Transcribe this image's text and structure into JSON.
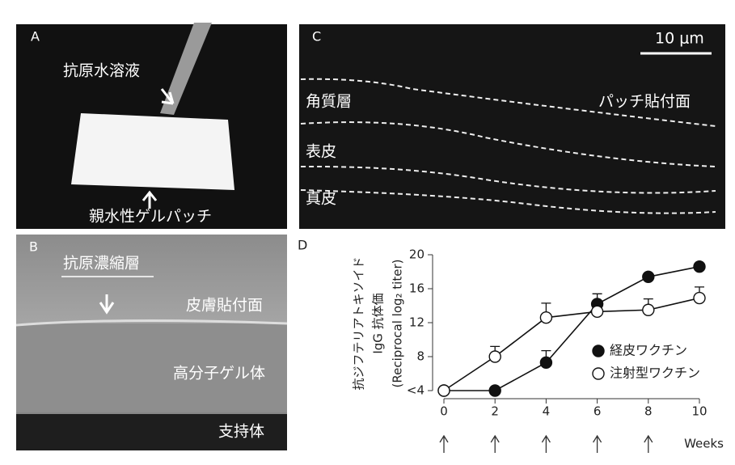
{
  "panels": {
    "a": {
      "label": "A",
      "antigen_solution": "抗原水溶液",
      "gel_patch": "親水性ゲルパッチ"
    },
    "b": {
      "label": "B",
      "antigen_layer": "抗原濃縮層",
      "skin_side": "皮膚貼付面",
      "polymer_gel": "高分子ゲル体",
      "support": "支持体"
    },
    "c": {
      "label": "C",
      "scale_bar": "10 μm",
      "stratum_corneum": "角質層",
      "patch_side": "パッチ貼付面",
      "epidermis": "表皮",
      "dermis": "真皮"
    },
    "d": {
      "label": "D"
    }
  },
  "chart_data": {
    "type": "line",
    "y_label_lines": [
      "抗ジフテリアトキソイド",
      "IgG 抗体価",
      "(Reciprocal log₂ titer)"
    ],
    "x_label": "Weeks",
    "x": [
      0,
      2,
      4,
      6,
      8,
      10
    ],
    "xlim": [
      0,
      10
    ],
    "xticks": [
      0,
      2,
      4,
      6,
      8,
      10
    ],
    "ylim": [
      4,
      20
    ],
    "yticks": [
      {
        "value": 4,
        "label": "<4"
      },
      8,
      12,
      16,
      20
    ],
    "immunization_weeks": [
      0,
      2,
      4,
      6,
      8
    ],
    "legend": "right",
    "series": [
      {
        "name": "経皮ワクチン",
        "color": "#111111",
        "marker_fill": "#111111",
        "values": [
          4,
          4,
          7.3,
          14.2,
          17.4,
          18.6
        ],
        "errors": [
          null,
          null,
          1.4,
          1.2,
          null,
          null
        ]
      },
      {
        "name": "注射型ワクチン",
        "color": "#111111",
        "marker_fill": "#ffffff",
        "values": [
          4,
          8,
          12.6,
          13.3,
          13.5,
          14.9
        ],
        "errors": [
          null,
          1.2,
          1.7,
          0.8,
          1.3,
          1.3
        ]
      }
    ]
  }
}
